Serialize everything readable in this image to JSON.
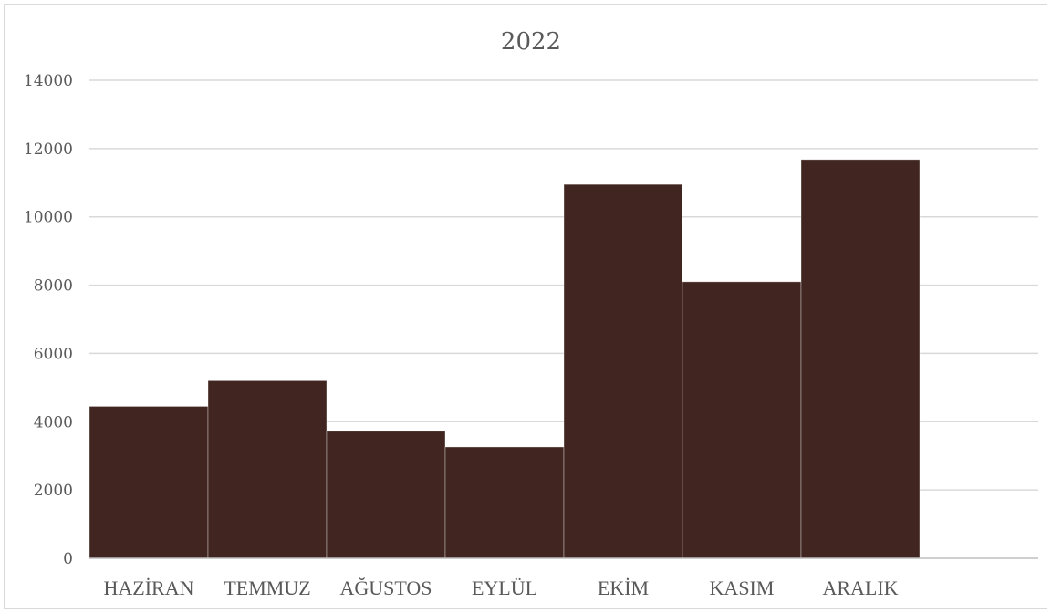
{
  "chart_data": {
    "type": "bar",
    "title": "2022",
    "xlabel": "",
    "ylabel": "",
    "categories": [
      "HAZİRAN",
      "TEMMUZ",
      "AĞUSTOS",
      "EYLÜL",
      "EKİM",
      "KASIM",
      "ARALIK",
      ""
    ],
    "values": [
      4450,
      5200,
      3720,
      3260,
      10950,
      8100,
      11680,
      null
    ],
    "ylim": [
      0,
      14000
    ],
    "yticks": [
      "0",
      "2000",
      "4000",
      "6000",
      "8000",
      "10000",
      "12000",
      "14000"
    ],
    "grid": true,
    "legend": "none",
    "colors": {
      "bar": "#402520",
      "grid": "#d9d9d9",
      "text": "#595959",
      "border": "#d9d9d9"
    }
  }
}
